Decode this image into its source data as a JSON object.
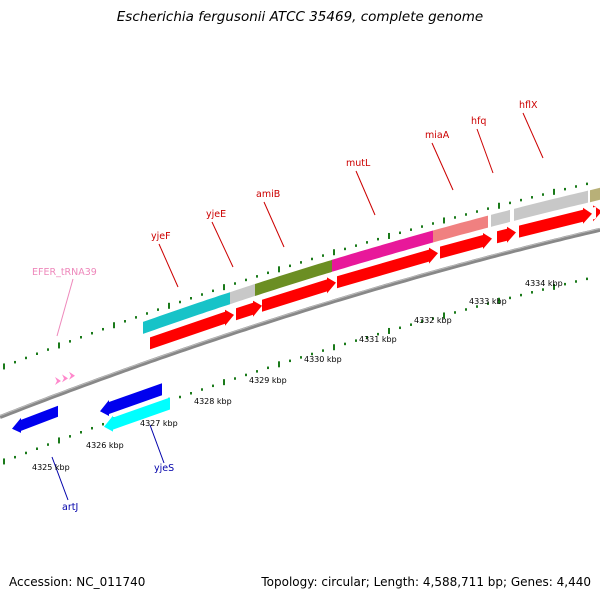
{
  "title": "Escherichia fergusonii ATCC 35469, complete genome",
  "footer": {
    "accession": "Accession: NC_011740",
    "stats": "Topology: circular; Length: 4,588,711 bp; Genes: 4,440"
  },
  "colors": {
    "forward_label": "#cc0000",
    "reverse_label": "#0000aa",
    "trna_label": "#ee88bb",
    "tick": "#1a7a1a",
    "backbone": "#888888",
    "cds": "#ff0000"
  },
  "scale": {
    "labels": [
      "4325 kbp",
      "4326 kbp",
      "4327 kbp",
      "4328 kbp",
      "4329 kbp",
      "4330 kbp",
      "4331 kbp",
      "4332 kbp",
      "4333 kbp",
      "4334 kbp"
    ]
  },
  "gene_labels": [
    {
      "id": "hflX",
      "text": "hflX",
      "strand": "forward"
    },
    {
      "id": "hfq",
      "text": "hfq",
      "strand": "forward"
    },
    {
      "id": "miaA",
      "text": "miaA",
      "strand": "forward"
    },
    {
      "id": "mutL",
      "text": "mutL",
      "strand": "forward"
    },
    {
      "id": "amiB",
      "text": "amiB",
      "strand": "forward"
    },
    {
      "id": "yjeE",
      "text": "yjeE",
      "strand": "forward"
    },
    {
      "id": "yjeF",
      "text": "yjeF",
      "strand": "forward"
    },
    {
      "id": "trna",
      "text": "EFER_tRNA39",
      "strand": "trna"
    },
    {
      "id": "yjeS",
      "text": "yjeS",
      "strand": "reverse"
    },
    {
      "id": "artJ",
      "text": "artJ",
      "strand": "reverse"
    }
  ],
  "features": [
    {
      "id": "yjeF",
      "color": "#17c3c8"
    },
    {
      "id": "yjeE",
      "color": "#c8c8c8"
    },
    {
      "id": "amiB",
      "color": "#6b8e23"
    },
    {
      "id": "mutL",
      "color": "#e8189a"
    },
    {
      "id": "miaA",
      "color": "#f08080"
    },
    {
      "id": "hfq",
      "color": "#c8c8c8"
    },
    {
      "id": "hflX",
      "color": "#c8c8c8"
    },
    {
      "id": "extra",
      "color": "#b8b078"
    },
    {
      "id": "yjeS",
      "color": "#00ffff"
    },
    {
      "id": "artJ",
      "color": "#0000ee"
    }
  ]
}
